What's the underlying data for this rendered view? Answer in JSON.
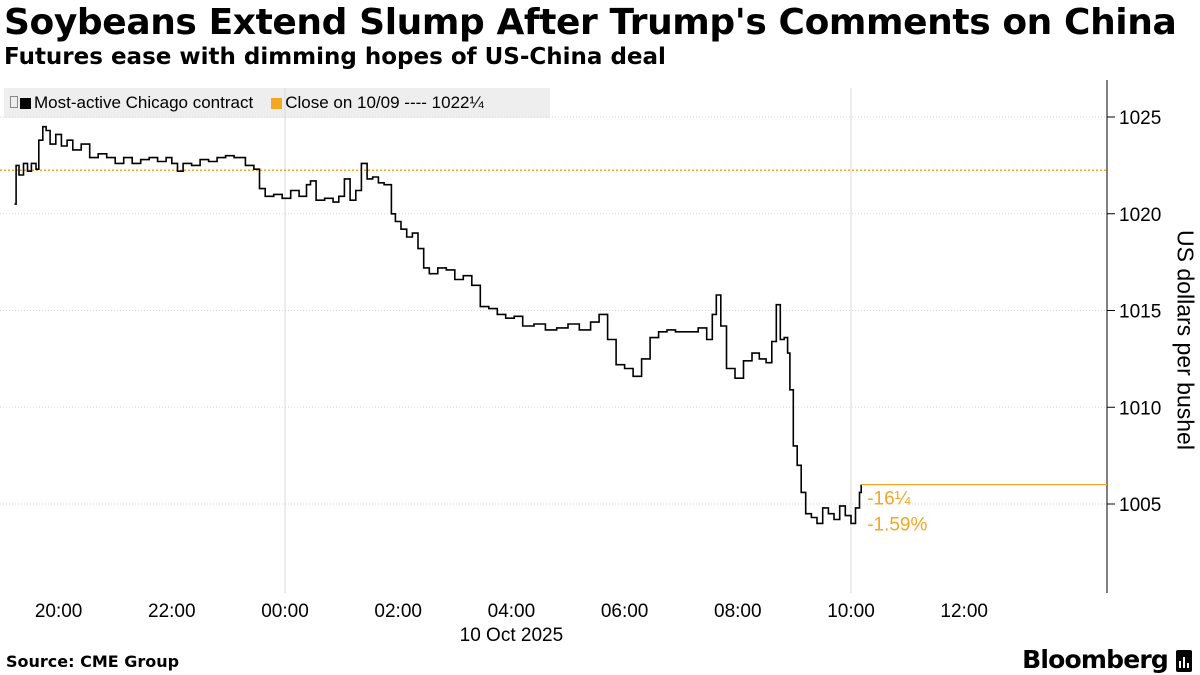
{
  "title": "Soybeans Extend Slump After Trump's Comments on China",
  "subtitle": "Futures ease with dimming hopes of US-China deal",
  "legend": {
    "series_label": "Most-active Chicago contract",
    "close_label": "Close on 10/09 ---- 1022¼"
  },
  "source": "Source: CME Group",
  "brand": "Bloomberg",
  "colors": {
    "series": "#000000",
    "close": "#f5a623",
    "grid": "#d9d9d9"
  },
  "chart_data": {
    "type": "line",
    "ylabel": "US dollars per bushel",
    "xlabel_date": "10 Oct 2025",
    "ylim": [
      1000,
      1026
    ],
    "xlim_hours": [
      19.2,
      14.3
    ],
    "y_ticks": [
      1005,
      1010,
      1015,
      1020,
      1025
    ],
    "x_ticks": [
      {
        "label": "20:00",
        "h": 20
      },
      {
        "label": "22:00",
        "h": 22
      },
      {
        "label": "00:00",
        "h": 24
      },
      {
        "label": "02:00",
        "h": 26
      },
      {
        "label": "04:00",
        "h": 28
      },
      {
        "label": "06:00",
        "h": 30
      },
      {
        "label": "08:00",
        "h": 32
      },
      {
        "label": "10:00",
        "h": 34
      },
      {
        "label": "12:00",
        "h": 36
      }
    ],
    "prev_close": 1022.25,
    "last_value": 1006.0,
    "change_label": "-16¼",
    "change_pct_label": "-1.59%",
    "series": [
      {
        "name": "Most-active Chicago contract",
        "points": [
          [
            19.22,
            1020.5
          ],
          [
            19.25,
            1022.5
          ],
          [
            19.3,
            1022.0
          ],
          [
            19.38,
            1022.6
          ],
          [
            19.45,
            1022.2
          ],
          [
            19.52,
            1022.6
          ],
          [
            19.6,
            1022.3
          ],
          [
            19.65,
            1023.8
          ],
          [
            19.72,
            1024.5
          ],
          [
            19.78,
            1024.3
          ],
          [
            19.85,
            1023.6
          ],
          [
            19.95,
            1024.1
          ],
          [
            20.05,
            1023.5
          ],
          [
            20.15,
            1023.8
          ],
          [
            20.25,
            1023.3
          ],
          [
            20.4,
            1023.6
          ],
          [
            20.55,
            1022.9
          ],
          [
            20.7,
            1023.1
          ],
          [
            20.85,
            1022.9
          ],
          [
            21.0,
            1022.6
          ],
          [
            21.15,
            1022.9
          ],
          [
            21.3,
            1022.6
          ],
          [
            21.45,
            1022.8
          ],
          [
            21.6,
            1022.9
          ],
          [
            21.75,
            1022.7
          ],
          [
            21.9,
            1022.9
          ],
          [
            22.0,
            1022.6
          ],
          [
            22.1,
            1022.2
          ],
          [
            22.2,
            1022.6
          ],
          [
            22.35,
            1022.5
          ],
          [
            22.5,
            1022.8
          ],
          [
            22.65,
            1022.7
          ],
          [
            22.8,
            1022.9
          ],
          [
            22.95,
            1023.0
          ],
          [
            23.1,
            1022.9
          ],
          [
            23.3,
            1022.5
          ],
          [
            23.45,
            1022.3
          ],
          [
            23.55,
            1021.3
          ],
          [
            23.65,
            1020.9
          ],
          [
            23.8,
            1021.0
          ],
          [
            23.95,
            1020.8
          ],
          [
            24.1,
            1021.2
          ],
          [
            24.25,
            1020.9
          ],
          [
            24.38,
            1021.5
          ],
          [
            24.45,
            1021.7
          ],
          [
            24.55,
            1020.7
          ],
          [
            24.7,
            1020.8
          ],
          [
            24.85,
            1020.6
          ],
          [
            24.95,
            1020.9
          ],
          [
            25.05,
            1021.8
          ],
          [
            25.15,
            1020.7
          ],
          [
            25.25,
            1021.2
          ],
          [
            25.35,
            1022.6
          ],
          [
            25.45,
            1021.8
          ],
          [
            25.55,
            1021.9
          ],
          [
            25.65,
            1021.6
          ],
          [
            25.75,
            1021.5
          ],
          [
            25.82,
            1021.5
          ],
          [
            25.88,
            1020.0
          ],
          [
            25.95,
            1019.6
          ],
          [
            26.05,
            1019.2
          ],
          [
            26.15,
            1018.8
          ],
          [
            26.25,
            1019.0
          ],
          [
            26.35,
            1018.2
          ],
          [
            26.45,
            1017.2
          ],
          [
            26.55,
            1016.9
          ],
          [
            26.7,
            1017.2
          ],
          [
            26.85,
            1017.1
          ],
          [
            27.0,
            1016.6
          ],
          [
            27.15,
            1016.8
          ],
          [
            27.3,
            1016.3
          ],
          [
            27.45,
            1015.2
          ],
          [
            27.6,
            1015.1
          ],
          [
            27.75,
            1014.8
          ],
          [
            27.9,
            1014.6
          ],
          [
            28.05,
            1014.7
          ],
          [
            28.2,
            1014.2
          ],
          [
            28.4,
            1014.3
          ],
          [
            28.6,
            1014.0
          ],
          [
            28.8,
            1014.1
          ],
          [
            29.0,
            1014.3
          ],
          [
            29.2,
            1014.0
          ],
          [
            29.4,
            1014.4
          ],
          [
            29.55,
            1014.8
          ],
          [
            29.7,
            1013.5
          ],
          [
            29.85,
            1012.2
          ],
          [
            30.0,
            1012.0
          ],
          [
            30.15,
            1011.6
          ],
          [
            30.3,
            1012.5
          ],
          [
            30.45,
            1013.6
          ],
          [
            30.6,
            1013.9
          ],
          [
            30.75,
            1014.0
          ],
          [
            30.9,
            1013.9
          ],
          [
            31.3,
            1014.1
          ],
          [
            31.45,
            1013.5
          ],
          [
            31.55,
            1014.8
          ],
          [
            31.62,
            1015.8
          ],
          [
            31.7,
            1014.2
          ],
          [
            31.8,
            1012.0
          ],
          [
            31.95,
            1011.5
          ],
          [
            32.1,
            1012.4
          ],
          [
            32.25,
            1012.8
          ],
          [
            32.38,
            1012.5
          ],
          [
            32.5,
            1012.3
          ],
          [
            32.6,
            1013.4
          ],
          [
            32.68,
            1015.3
          ],
          [
            32.75,
            1013.5
          ],
          [
            32.82,
            1013.6
          ],
          [
            32.88,
            1012.8
          ],
          [
            32.92,
            1010.9
          ],
          [
            32.98,
            1008.0
          ],
          [
            33.05,
            1007.0
          ],
          [
            33.12,
            1005.6
          ],
          [
            33.2,
            1004.5
          ],
          [
            33.3,
            1004.3
          ],
          [
            33.4,
            1004.0
          ],
          [
            33.5,
            1004.8
          ],
          [
            33.6,
            1004.5
          ],
          [
            33.7,
            1004.2
          ],
          [
            33.8,
            1004.9
          ],
          [
            33.9,
            1004.4
          ],
          [
            34.0,
            1004.0
          ],
          [
            34.08,
            1004.8
          ],
          [
            34.15,
            1005.6
          ],
          [
            34.18,
            1006.0
          ]
        ]
      }
    ]
  }
}
